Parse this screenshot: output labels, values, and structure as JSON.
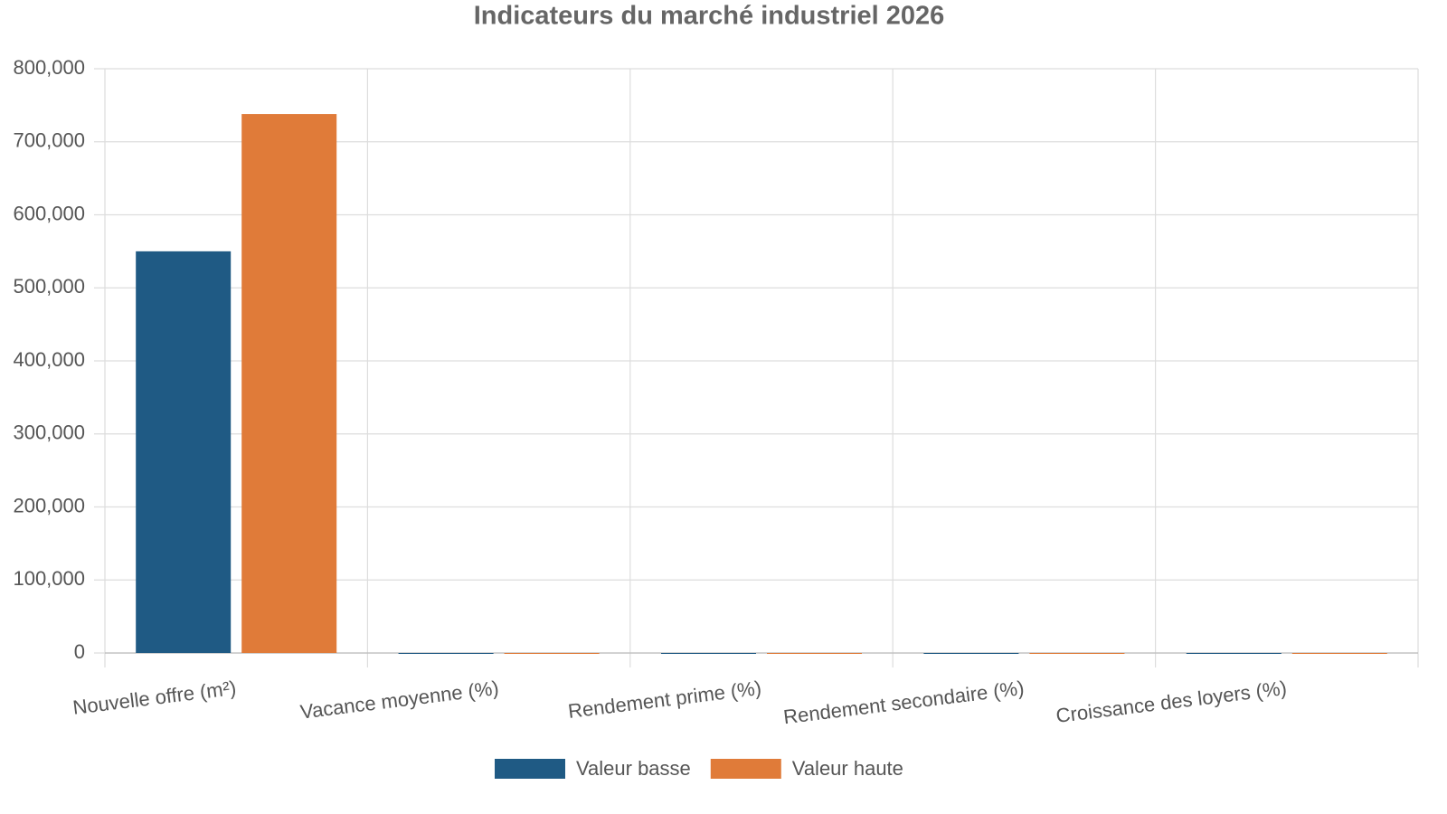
{
  "chart_data": {
    "type": "bar",
    "title": "Indicateurs du marché industriel 2026",
    "categories": [
      "Nouvelle offre (m²)",
      "Vacance moyenne (%)",
      "Rendement prime (%)",
      "Rendement secondaire (%)",
      "Croissance des loyers (%)"
    ],
    "series": [
      {
        "name": "Valeur basse",
        "color": "#1f5a84",
        "values": [
          550000,
          3.5,
          4.5,
          5.5,
          2.0
        ]
      },
      {
        "name": "Valeur haute",
        "color": "#e07b39",
        "values": [
          738000,
          5.0,
          5.0,
          6.5,
          4.0
        ]
      }
    ],
    "ylim": [
      0,
      800000
    ],
    "yticks": [
      0,
      {
        "value": 100000,
        "label": "100,000"
      },
      {
        "value": 200000,
        "label": "200,000"
      },
      {
        "value": 300000,
        "label": "300,000"
      },
      {
        "value": 400000,
        "label": "400,000"
      },
      {
        "value": 500000,
        "label": "500,000"
      },
      {
        "value": 600000,
        "label": "600,000"
      },
      {
        "value": 700000,
        "label": "700,000"
      },
      {
        "value": 800000,
        "label": "800,000"
      }
    ],
    "grid": true,
    "legend": "bottom"
  }
}
